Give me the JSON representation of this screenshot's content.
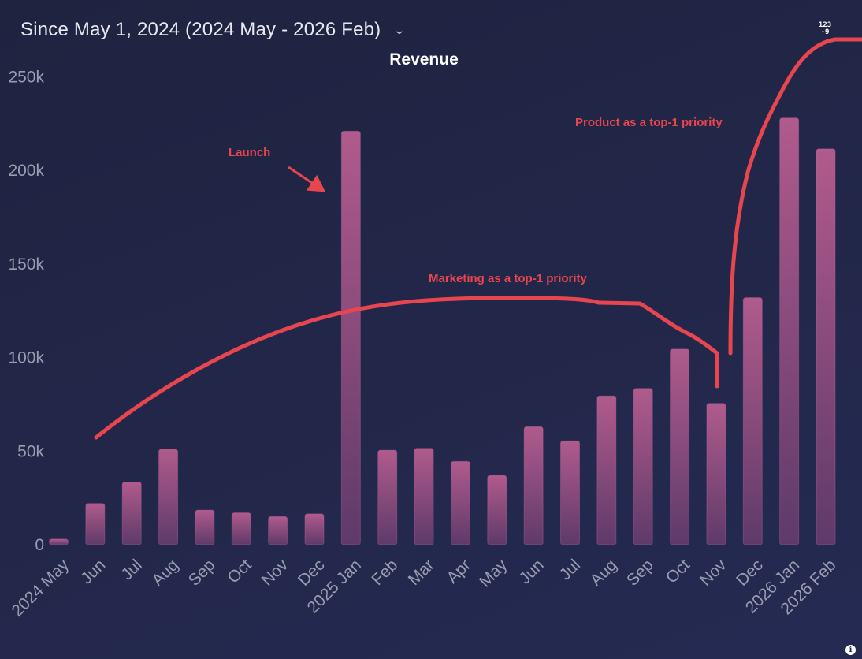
{
  "header": {
    "date_range_label": "Since May 1, 2024 (2024 May - 2026 Feb)",
    "number_format_toggle_text": "123\n-9"
  },
  "colors": {
    "bar_top": "#b05b8c",
    "bar_bottom": "#6a3f72",
    "annotation": "#e8464f",
    "axis_text": "#9a9cb1",
    "background": "#222647"
  },
  "chart_data": {
    "type": "bar",
    "title": "Revenue",
    "xlabel": "",
    "ylabel": "",
    "ylim": [
      0,
      270000
    ],
    "y_ticks": [
      {
        "value": 0,
        "label": "0"
      },
      {
        "value": 50000,
        "label": "50k"
      },
      {
        "value": 100000,
        "label": "100k"
      },
      {
        "value": 150000,
        "label": "150k"
      },
      {
        "value": 200000,
        "label": "200k"
      },
      {
        "value": 250000,
        "label": "250k"
      }
    ],
    "categories": [
      "2024 May",
      "Jun",
      "Jul",
      "Aug",
      "Sep",
      "Oct",
      "Nov",
      "Dec",
      "2025 Jan",
      "Feb",
      "Mar",
      "Apr",
      "May",
      "Jun",
      "Jul",
      "Aug",
      "Sep",
      "Oct",
      "Nov",
      "Dec",
      "2026 Jan",
      "2026 Feb"
    ],
    "values": [
      3000,
      22000,
      33500,
      51000,
      18500,
      17000,
      15000,
      16500,
      221000,
      50500,
      51500,
      44500,
      37000,
      63000,
      55500,
      79500,
      83500,
      104500,
      75500,
      132000,
      228000,
      211500
    ],
    "grid": false,
    "legend": "none",
    "annotations": [
      {
        "text": "Launch",
        "target_category": "2025 Jan"
      },
      {
        "text": "Marketing as a top-1 priority"
      },
      {
        "text": "Product as a top-1 priority"
      }
    ]
  }
}
